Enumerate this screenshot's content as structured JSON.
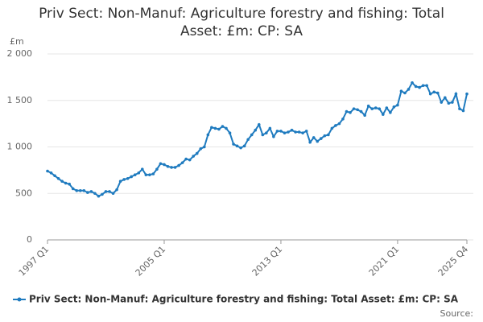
{
  "chart_data": {
    "type": "line",
    "title": "Priv Sect: Non-Manuf: Agriculture forestry and fishing: Total Asset: £m: CP: SA",
    "y_label": "£m",
    "source": "Source:",
    "categories": [
      "1997 Q1",
      null,
      null,
      null,
      null,
      null,
      null,
      null,
      null,
      null,
      null,
      null,
      null,
      null,
      null,
      null,
      null,
      null,
      null,
      null,
      null,
      null,
      null,
      null,
      null,
      null,
      null,
      null,
      null,
      null,
      null,
      null,
      "2005 Q1",
      null,
      null,
      null,
      null,
      null,
      null,
      null,
      null,
      null,
      null,
      null,
      null,
      null,
      null,
      null,
      null,
      null,
      null,
      null,
      null,
      null,
      null,
      null,
      null,
      null,
      null,
      null,
      null,
      null,
      null,
      null,
      "2013 Q1",
      null,
      null,
      null,
      null,
      null,
      null,
      null,
      null,
      null,
      null,
      null,
      null,
      null,
      null,
      null,
      null,
      null,
      null,
      null,
      null,
      null,
      null,
      null,
      null,
      null,
      null,
      null,
      null,
      null,
      null,
      null,
      "2021 Q1",
      null,
      null,
      null,
      null,
      null,
      null,
      null,
      null,
      null,
      null,
      null,
      null,
      null,
      null,
      null,
      null,
      null,
      null,
      "2025 Q4"
    ],
    "series": [
      {
        "name": "Priv Sect: Non-Manuf: Agriculture forestry and fishing: Total Asset: £m: CP: SA",
        "color": "#1f7bbf",
        "values": [
          740,
          720,
          690,
          660,
          630,
          610,
          600,
          550,
          530,
          530,
          530,
          510,
          520,
          500,
          470,
          490,
          520,
          520,
          500,
          540,
          630,
          650,
          660,
          680,
          700,
          720,
          760,
          700,
          700,
          710,
          760,
          820,
          810,
          790,
          780,
          780,
          800,
          830,
          870,
          860,
          900,
          930,
          980,
          1000,
          1130,
          1210,
          1200,
          1190,
          1220,
          1200,
          1150,
          1030,
          1010,
          990,
          1010,
          1080,
          1130,
          1180,
          1240,
          1130,
          1150,
          1200,
          1110,
          1170,
          1170,
          1150,
          1160,
          1180,
          1160,
          1160,
          1150,
          1170,
          1050,
          1100,
          1060,
          1090,
          1120,
          1130,
          1200,
          1230,
          1250,
          1300,
          1380,
          1370,
          1410,
          1400,
          1380,
          1340,
          1440,
          1410,
          1420,
          1410,
          1350,
          1420,
          1370,
          1430,
          1450,
          1600,
          1580,
          1620,
          1690,
          1650,
          1640,
          1660,
          1660,
          1570,
          1590,
          1580,
          1480,
          1530,
          1470,
          1480,
          1570,
          1410,
          1390,
          1570
        ]
      }
    ],
    "ylim": [
      0,
      2000
    ],
    "yticks": [
      0,
      500,
      {
        "value": 1000,
        "label": "1 000"
      },
      {
        "value": 1500,
        "label": "1 500"
      },
      {
        "value": 2000,
        "label": "2 000"
      }
    ],
    "grid": true
  }
}
